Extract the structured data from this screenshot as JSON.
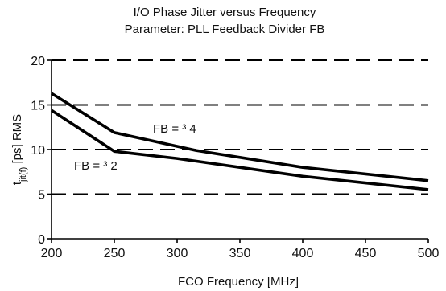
{
  "chart_data": {
    "type": "line",
    "title": "I/O Phase Jitter versus Frequency",
    "subtitle": "Parameter: PLL Feedback Divider FB",
    "xlabel": "FCO Frequency [MHz]",
    "ylabel": {
      "main": "t",
      "sub": "jit(f)",
      "rest": " [ps] RMS"
    },
    "xlim": [
      200,
      500
    ],
    "ylim": [
      0,
      20
    ],
    "xticks": [
      200,
      250,
      300,
      350,
      400,
      450,
      500
    ],
    "yticks": [
      0,
      5,
      10,
      15,
      20
    ],
    "grid": {
      "y": true,
      "style": "dashed",
      "values": [
        5,
        10,
        15,
        20
      ]
    },
    "series": [
      {
        "name": "FB = ³ 4",
        "x": [
          200,
          250,
          315,
          400,
          500
        ],
        "values": [
          16.3,
          11.9,
          9.9,
          8.0,
          6.5
        ]
      },
      {
        "name": "FB = ³ 2",
        "x": [
          200,
          250,
          300,
          400,
          500
        ],
        "values": [
          14.4,
          9.8,
          9.0,
          7.0,
          5.5
        ]
      }
    ],
    "annotations": [
      "FB = ³ 4",
      "FB = ³ 2"
    ]
  }
}
